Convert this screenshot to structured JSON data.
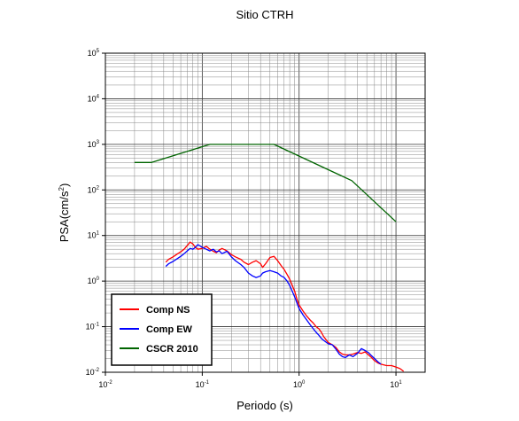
{
  "chart_data": {
    "type": "line",
    "title": "Sitio CTRH",
    "xlabel": "Periodo (s)",
    "ylabel": "PSA(cm/s",
    "ylabel_exp": "2",
    "ylabel_close": ")",
    "x_scale": "log",
    "y_scale": "log",
    "xlim": [
      0.01,
      20
    ],
    "ylim": [
      0.01,
      100000
    ],
    "grid": true,
    "legend_position": "bottom-left",
    "x_ticks": [
      {
        "base": "10",
        "exp": "-2"
      },
      {
        "base": "10",
        "exp": "-1"
      },
      {
        "base": "10",
        "exp": "0"
      },
      {
        "base": "10",
        "exp": "1"
      }
    ],
    "y_ticks": [
      {
        "base": "10",
        "exp": "-2"
      },
      {
        "base": "10",
        "exp": "-1"
      },
      {
        "base": "10",
        "exp": "0"
      },
      {
        "base": "10",
        "exp": "1"
      },
      {
        "base": "10",
        "exp": "2"
      },
      {
        "base": "10",
        "exp": "3"
      },
      {
        "base": "10",
        "exp": "4"
      },
      {
        "base": "10",
        "exp": "5"
      }
    ],
    "series": [
      {
        "name": "Comp NS",
        "color": "#ff0000",
        "points": [
          [
            0.042,
            2.6
          ],
          [
            0.045,
            3.0
          ],
          [
            0.05,
            3.4
          ],
          [
            0.055,
            3.9
          ],
          [
            0.06,
            4.4
          ],
          [
            0.065,
            5.0
          ],
          [
            0.07,
            6.0
          ],
          [
            0.075,
            7.2
          ],
          [
            0.08,
            6.5
          ],
          [
            0.085,
            5.5
          ],
          [
            0.09,
            5.0
          ],
          [
            0.1,
            5.2
          ],
          [
            0.11,
            5.8
          ],
          [
            0.12,
            5.0
          ],
          [
            0.13,
            4.5
          ],
          [
            0.14,
            4.2
          ],
          [
            0.15,
            4.8
          ],
          [
            0.16,
            5.2
          ],
          [
            0.18,
            4.6
          ],
          [
            0.2,
            3.8
          ],
          [
            0.22,
            3.4
          ],
          [
            0.25,
            3.0
          ],
          [
            0.27,
            2.6
          ],
          [
            0.3,
            2.3
          ],
          [
            0.33,
            2.6
          ],
          [
            0.36,
            2.8
          ],
          [
            0.4,
            2.4
          ],
          [
            0.42,
            2.0
          ],
          [
            0.45,
            2.4
          ],
          [
            0.5,
            3.3
          ],
          [
            0.55,
            3.5
          ],
          [
            0.6,
            2.8
          ],
          [
            0.65,
            2.2
          ],
          [
            0.7,
            1.8
          ],
          [
            0.75,
            1.4
          ],
          [
            0.8,
            1.1
          ],
          [
            0.85,
            0.8
          ],
          [
            0.9,
            0.6
          ],
          [
            0.95,
            0.4
          ],
          [
            1.0,
            0.3
          ],
          [
            1.1,
            0.22
          ],
          [
            1.2,
            0.17
          ],
          [
            1.3,
            0.14
          ],
          [
            1.4,
            0.12
          ],
          [
            1.5,
            0.1
          ],
          [
            1.6,
            0.09
          ],
          [
            1.7,
            0.075
          ],
          [
            1.8,
            0.06
          ],
          [
            2.0,
            0.045
          ],
          [
            2.2,
            0.04
          ],
          [
            2.4,
            0.035
          ],
          [
            2.6,
            0.028
          ],
          [
            2.8,
            0.025
          ],
          [
            3.0,
            0.024
          ],
          [
            3.3,
            0.024
          ],
          [
            3.6,
            0.025
          ],
          [
            4.0,
            0.027
          ],
          [
            4.4,
            0.026
          ],
          [
            4.8,
            0.028
          ],
          [
            5.2,
            0.024
          ],
          [
            5.6,
            0.021
          ],
          [
            6.0,
            0.018
          ],
          [
            6.5,
            0.016
          ],
          [
            7.0,
            0.015
          ],
          [
            8.0,
            0.014
          ],
          [
            9.0,
            0.014
          ],
          [
            10.0,
            0.013
          ],
          [
            11.0,
            0.012
          ],
          [
            12.0,
            0.0105
          ]
        ]
      },
      {
        "name": "Comp EW",
        "color": "#0000ff",
        "points": [
          [
            0.042,
            2.1
          ],
          [
            0.045,
            2.4
          ],
          [
            0.05,
            2.7
          ],
          [
            0.055,
            3.1
          ],
          [
            0.06,
            3.5
          ],
          [
            0.065,
            4.0
          ],
          [
            0.07,
            4.6
          ],
          [
            0.075,
            5.2
          ],
          [
            0.08,
            5.0
          ],
          [
            0.085,
            5.5
          ],
          [
            0.09,
            6.3
          ],
          [
            0.1,
            5.5
          ],
          [
            0.11,
            5.0
          ],
          [
            0.12,
            4.6
          ],
          [
            0.13,
            5.0
          ],
          [
            0.14,
            4.4
          ],
          [
            0.15,
            4.6
          ],
          [
            0.16,
            4.0
          ],
          [
            0.18,
            4.5
          ],
          [
            0.2,
            3.4
          ],
          [
            0.22,
            2.8
          ],
          [
            0.25,
            2.3
          ],
          [
            0.27,
            2.0
          ],
          [
            0.3,
            1.5
          ],
          [
            0.33,
            1.3
          ],
          [
            0.36,
            1.2
          ],
          [
            0.4,
            1.3
          ],
          [
            0.42,
            1.5
          ],
          [
            0.45,
            1.6
          ],
          [
            0.5,
            1.7
          ],
          [
            0.55,
            1.6
          ],
          [
            0.6,
            1.5
          ],
          [
            0.65,
            1.3
          ],
          [
            0.7,
            1.2
          ],
          [
            0.75,
            1.0
          ],
          [
            0.8,
            0.8
          ],
          [
            0.85,
            0.6
          ],
          [
            0.9,
            0.45
          ],
          [
            0.95,
            0.33
          ],
          [
            1.0,
            0.25
          ],
          [
            1.1,
            0.18
          ],
          [
            1.2,
            0.14
          ],
          [
            1.3,
            0.11
          ],
          [
            1.4,
            0.09
          ],
          [
            1.5,
            0.075
          ],
          [
            1.6,
            0.065
          ],
          [
            1.7,
            0.055
          ],
          [
            1.8,
            0.05
          ],
          [
            2.0,
            0.042
          ],
          [
            2.2,
            0.04
          ],
          [
            2.4,
            0.032
          ],
          [
            2.6,
            0.025
          ],
          [
            2.8,
            0.022
          ],
          [
            3.0,
            0.021
          ],
          [
            3.3,
            0.024
          ],
          [
            3.6,
            0.022
          ],
          [
            4.0,
            0.026
          ],
          [
            4.4,
            0.033
          ],
          [
            4.8,
            0.03
          ],
          [
            5.2,
            0.027
          ],
          [
            5.6,
            0.023
          ],
          [
            6.0,
            0.02
          ],
          [
            6.5,
            0.017
          ],
          [
            7.0,
            0.015
          ]
        ]
      },
      {
        "name": "CSCR 2010",
        "color": "#006400",
        "points": [
          [
            0.02,
            400
          ],
          [
            0.03,
            400
          ],
          [
            0.12,
            1000
          ],
          [
            0.55,
            1000
          ],
          [
            3.5,
            160
          ],
          [
            10.0,
            20
          ]
        ]
      }
    ]
  }
}
